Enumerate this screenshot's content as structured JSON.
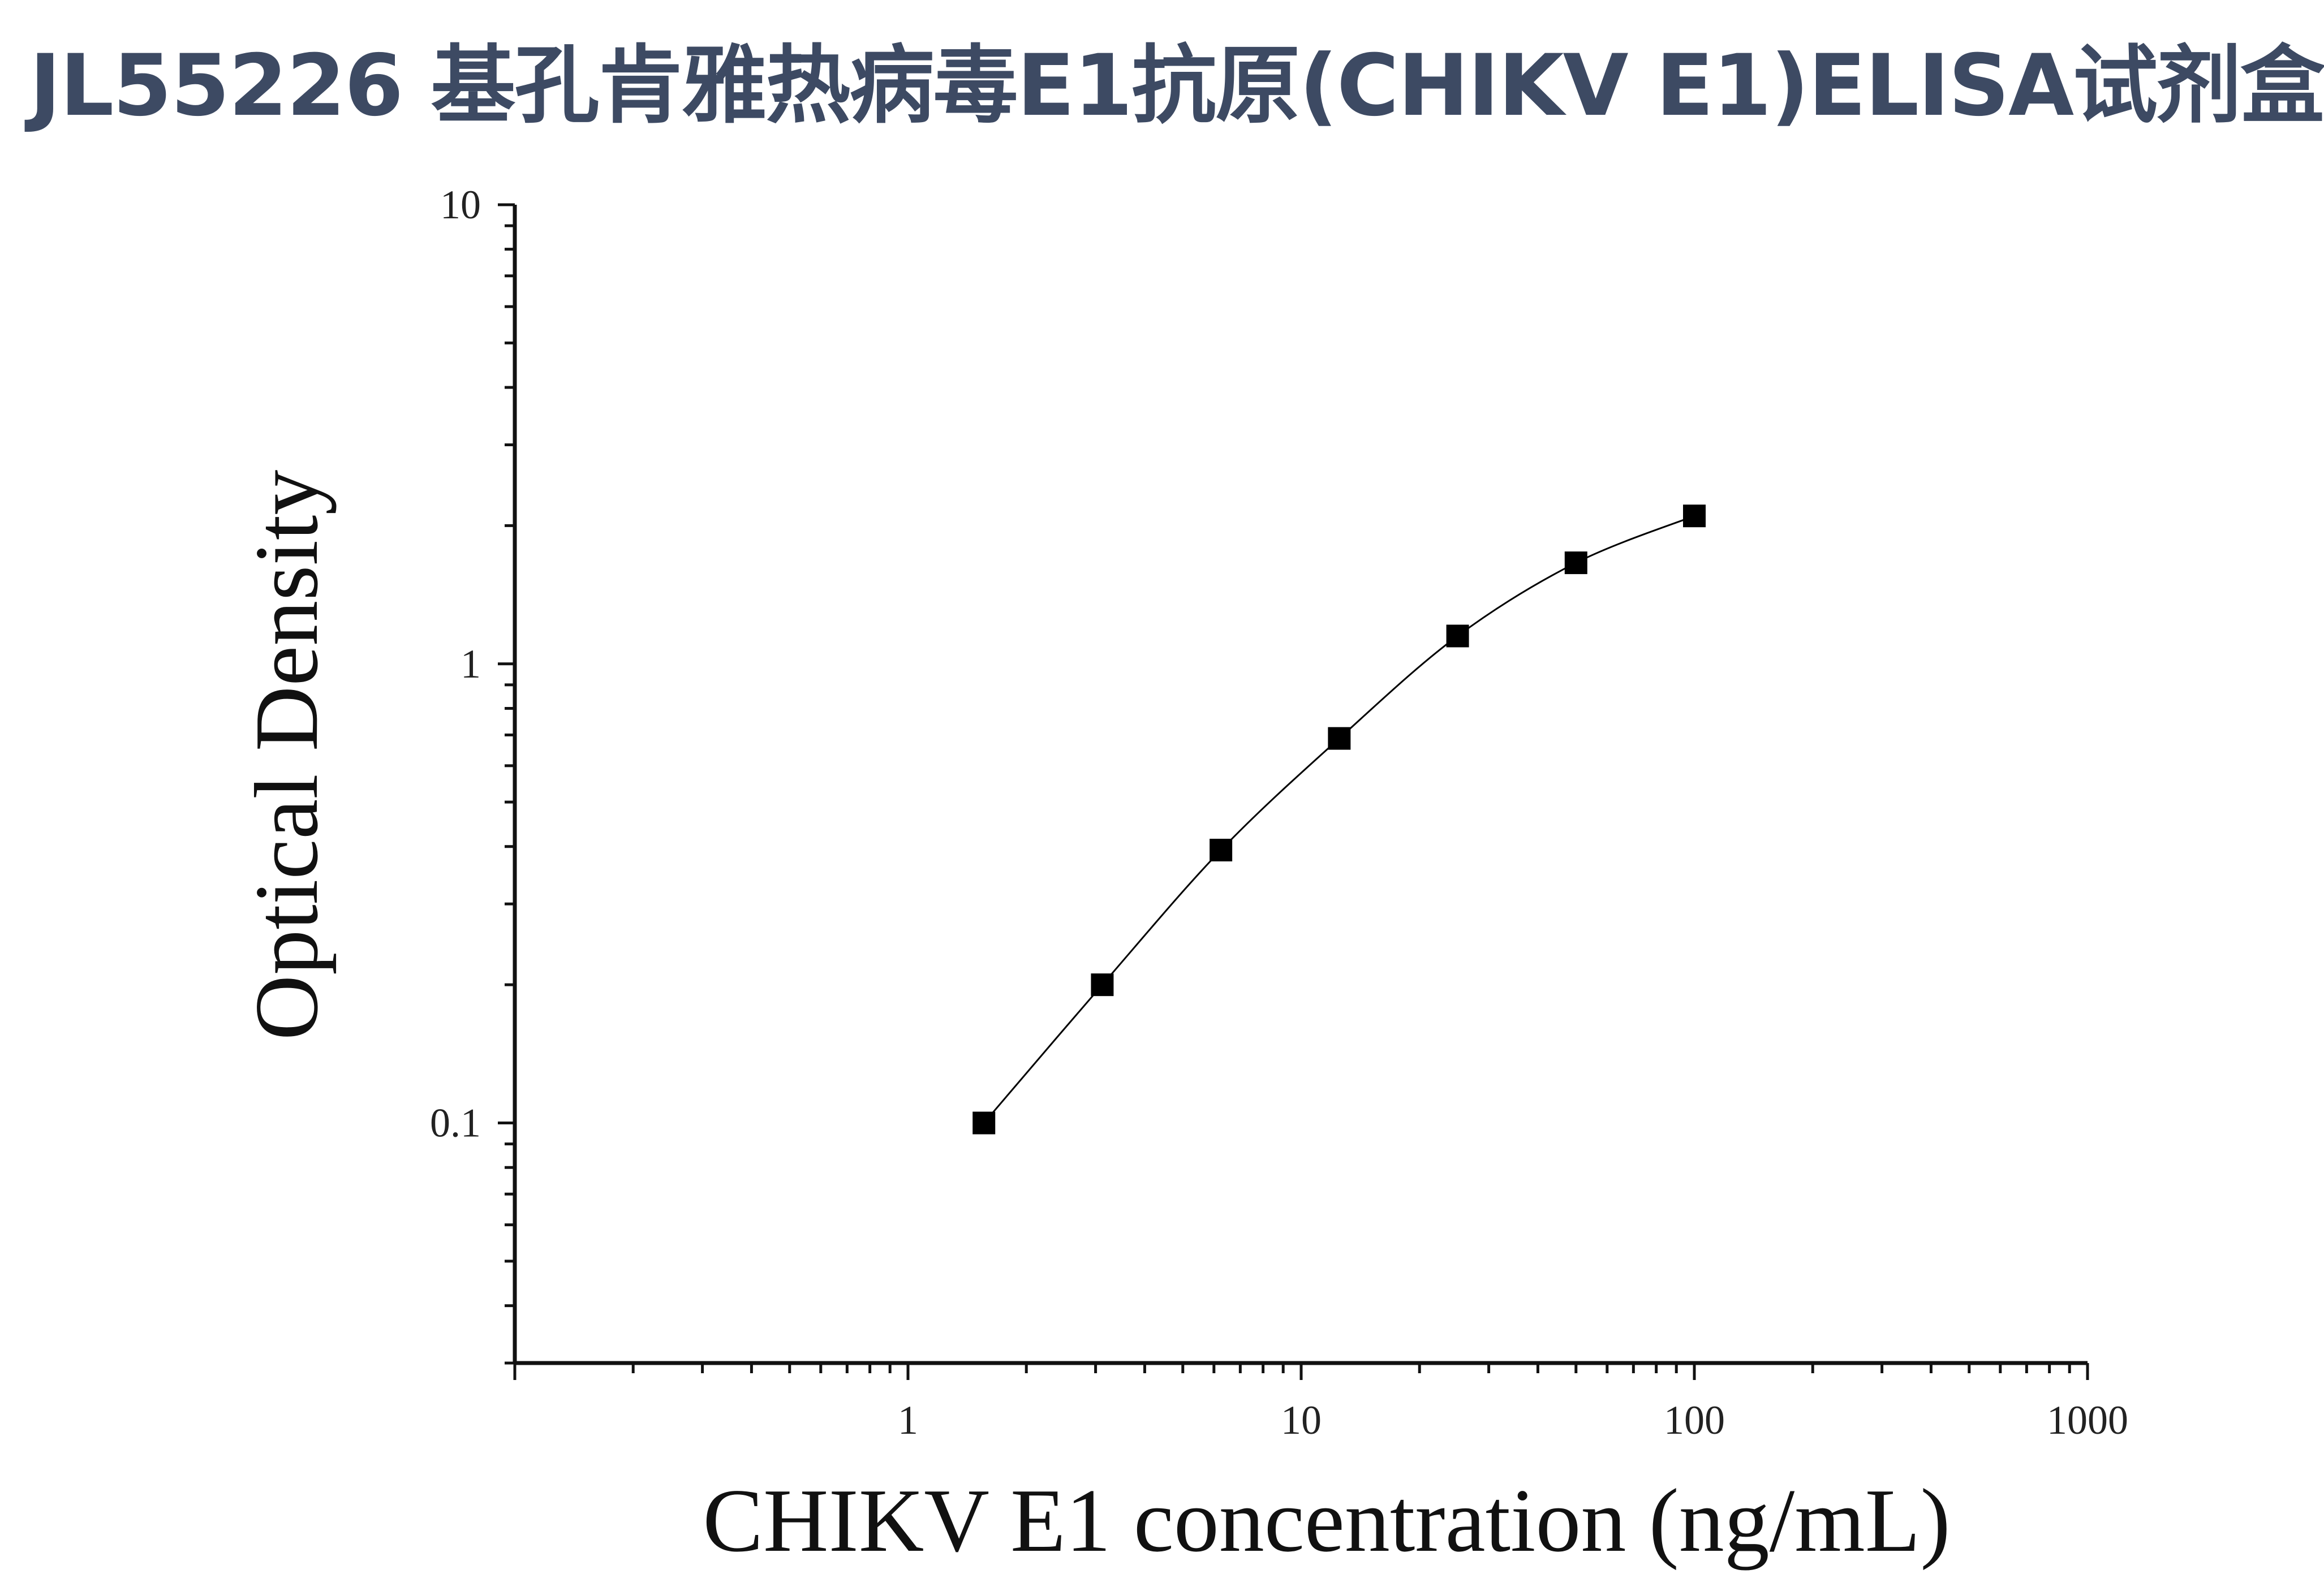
{
  "title": "JL55226 基孔肯雅热病毒E1抗原(CHIKV E1)ELISA试剂盒",
  "colors": {
    "title": "#3d4a63",
    "axis": "#111111",
    "marker": "#000000",
    "curve": "#000000"
  },
  "chart_data": {
    "type": "scatter",
    "xlabel": "CHIKV E1 concentration (ng/mL)",
    "ylabel": "Optical Density",
    "xscale": "log",
    "yscale": "log",
    "xlim": [
      0.1,
      1000
    ],
    "ylim": [
      0.03,
      10
    ],
    "x_ticks": [
      {
        "value": 1,
        "label": "1"
      },
      {
        "value": 10,
        "label": "10"
      },
      {
        "value": 100,
        "label": "100"
      },
      {
        "value": 1000,
        "label": "1000"
      }
    ],
    "y_ticks": [
      {
        "value": 0.1,
        "label": "0.1"
      },
      {
        "value": 1,
        "label": "1"
      },
      {
        "value": 10,
        "label": "10"
      }
    ],
    "grid": false,
    "legend": "none",
    "series": [
      {
        "marker": "square",
        "fit_curve": true,
        "x": [
          1.56,
          3.12,
          6.25,
          12.5,
          25,
          50,
          100
        ],
        "y": [
          0.1,
          0.2,
          0.393,
          0.688,
          1.15,
          1.66,
          2.1
        ]
      }
    ]
  }
}
